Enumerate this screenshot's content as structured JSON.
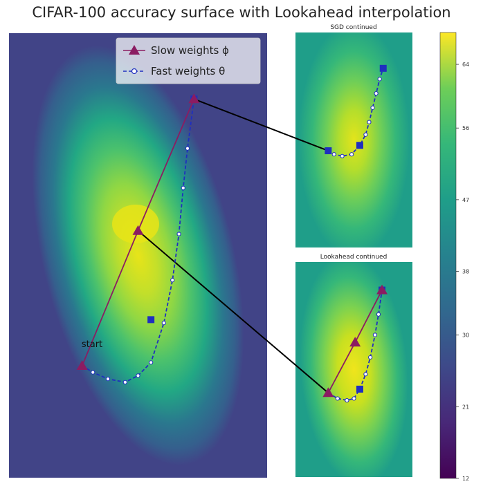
{
  "title": "CIFAR-100 accuracy surface with Lookahead interpolation",
  "chart_data": [
    {
      "type": "heatmap",
      "panel": "main",
      "title": "",
      "legend": [
        {
          "label": "Slow weights ϕ",
          "color": "#8b1c62",
          "marker": "triangle"
        },
        {
          "label": "Fast weights θ",
          "color": "#1f2fbf",
          "marker": "circle"
        }
      ],
      "annotation": "start",
      "slow_path": [
        [
          0.34,
          0.34
        ],
        [
          0.6,
          0.75
        ],
        [
          0.86,
          1.15
        ]
      ],
      "fast_markers": [
        [
          0.86,
          1.15
        ],
        [
          0.66,
          0.48
        ]
      ],
      "fast_path": [
        [
          0.34,
          0.34
        ],
        [
          0.39,
          0.32
        ],
        [
          0.46,
          0.3
        ],
        [
          0.54,
          0.29
        ],
        [
          0.6,
          0.31
        ],
        [
          0.66,
          0.35
        ],
        [
          0.72,
          0.47
        ],
        [
          0.76,
          0.6
        ],
        [
          0.79,
          0.74
        ],
        [
          0.81,
          0.88
        ],
        [
          0.83,
          1.0
        ],
        [
          0.86,
          1.15
        ]
      ],
      "peak": [
        0.5,
        0.86
      ]
    },
    {
      "type": "heatmap",
      "panel": "top-right",
      "title": "SGD continued",
      "fast_path": [
        [
          0.28,
          0.54
        ],
        [
          0.33,
          0.52
        ],
        [
          0.4,
          0.51
        ],
        [
          0.48,
          0.52
        ],
        [
          0.55,
          0.57
        ],
        [
          0.6,
          0.63
        ],
        [
          0.63,
          0.7
        ],
        [
          0.66,
          0.78
        ],
        [
          0.69,
          0.86
        ],
        [
          0.72,
          0.94
        ],
        [
          0.75,
          1.0
        ]
      ],
      "fast_markers": [
        [
          0.28,
          0.54
        ],
        [
          0.55,
          0.57
        ],
        [
          0.75,
          1.0
        ]
      ],
      "peak": [
        0.5,
        0.91
      ]
    },
    {
      "type": "heatmap",
      "panel": "bottom-right",
      "title": "Lookahead continued",
      "slow_path": [
        [
          0.28,
          0.45
        ],
        [
          0.51,
          0.72
        ],
        [
          0.74,
          1.0
        ]
      ],
      "fast_path": [
        [
          0.28,
          0.45
        ],
        [
          0.36,
          0.42
        ],
        [
          0.44,
          0.41
        ],
        [
          0.5,
          0.42
        ],
        [
          0.55,
          0.47
        ],
        [
          0.6,
          0.55
        ],
        [
          0.64,
          0.64
        ],
        [
          0.68,
          0.76
        ],
        [
          0.71,
          0.87
        ],
        [
          0.74,
          1.0
        ]
      ],
      "fast_markers": [
        [
          0.55,
          0.47
        ],
        [
          0.74,
          1.0
        ]
      ],
      "peak": [
        0.52,
        0.72
      ]
    }
  ],
  "colorbar": {
    "ticks": [
      "64",
      "56",
      "47",
      "38",
      "30",
      "21",
      "12"
    ],
    "tick_values": [
      64,
      56,
      47,
      38,
      30,
      21,
      12
    ],
    "range": [
      12,
      68
    ],
    "colormap": "viridis"
  },
  "colors": {
    "slow": "#8b1c62",
    "fast": "#1f2fbf",
    "connector": "#000000"
  }
}
